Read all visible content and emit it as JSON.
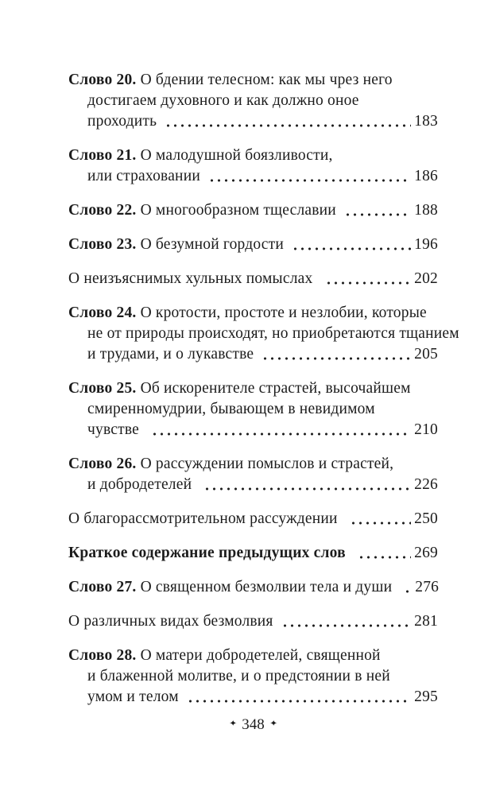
{
  "toc": {
    "entries": [
      {
        "label": "Слово 20.",
        "bold": false,
        "lines": [
          "О бдении телесном: как мы чрез него",
          "достигаем духовного и как должно оное",
          "проходить"
        ],
        "page": "183"
      },
      {
        "label": "Слово 21.",
        "bold": false,
        "lines": [
          "О малодушной боязливости,",
          "или страховании"
        ],
        "page": "186"
      },
      {
        "label": "Слово 22.",
        "bold": false,
        "lines": [
          "О многообразном тщеславии"
        ],
        "page": "188"
      },
      {
        "label": "Слово 23.",
        "bold": false,
        "lines": [
          "О безумной гордости"
        ],
        "page": "196"
      },
      {
        "label": "",
        "bold": false,
        "lines": [
          "О неизъяснимых хульных помыслах "
        ],
        "page": "202"
      },
      {
        "label": "Слово 24.",
        "bold": false,
        "lines": [
          "О кротости, простоте и незлобии, которые",
          "не от природы происходят, но приобретаются тщанием",
          "и трудами, и о лукавстве"
        ],
        "page": "205"
      },
      {
        "label": "Слово 25.",
        "bold": false,
        "lines": [
          "Об искоренителе страстей, высочайшем",
          "смиренномудрии, бывающем в невидимом",
          "чувстве "
        ],
        "page": "210"
      },
      {
        "label": "Слово 26.",
        "bold": false,
        "lines": [
          "О рассуждении помыслов и страстей,",
          "и добродетелей "
        ],
        "page": "226"
      },
      {
        "label": "",
        "bold": false,
        "lines": [
          "О благорассмотрительном рассуждении "
        ],
        "page": "250"
      },
      {
        "label": "",
        "bold": true,
        "lines": [
          "Краткое содержание предыдущих слов "
        ],
        "page": "269"
      },
      {
        "label": "Слово 27.",
        "bold": false,
        "lines": [
          "О священном безмолвии тела и души "
        ],
        "page": "276"
      },
      {
        "label": "",
        "bold": false,
        "lines": [
          "О различных видах безмолвия"
        ],
        "page": "281"
      },
      {
        "label": "Слово 28.",
        "bold": false,
        "lines": [
          "О матери добродетелей, священной",
          "и блаженной молитве, и о предстоянии в ней",
          "умом и телом"
        ],
        "page": "295"
      }
    ]
  },
  "footer": {
    "left_marker": "✦",
    "page_number": "348",
    "right_marker": "✦"
  }
}
